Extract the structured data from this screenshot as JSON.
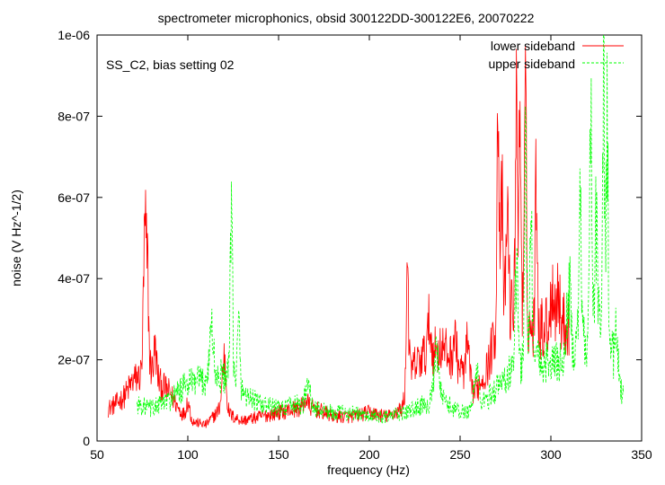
{
  "chart_data": {
    "type": "line",
    "title": "spectrometer microphonics, obsid 300122DD-300122E6, 20070222",
    "annotation": "SS_C2, bias setting 02",
    "xlabel": "frequency (Hz)",
    "ylabel": "noise (V Hz^-1/2)",
    "xlim": [
      50,
      350
    ],
    "ylim": [
      0,
      1e-06
    ],
    "x_ticks": [
      50,
      100,
      150,
      200,
      250,
      300,
      350
    ],
    "x_tick_labels": [
      "50",
      "100",
      "150",
      "200",
      "250",
      "300",
      "350"
    ],
    "y_ticks": [
      0,
      2e-07,
      4e-07,
      6e-07,
      8e-07,
      1e-06
    ],
    "y_tick_labels": [
      "0",
      "2e-07",
      "4e-07",
      "6e-07",
      "8e-07",
      "1e-06"
    ],
    "grid": false,
    "legend_position": "top-right",
    "series": [
      {
        "name": "lower sideband",
        "color": "#ff0000",
        "dash": "solid",
        "x_range": [
          56,
          310
        ],
        "base": [
          [
            56,
            8e-08
          ],
          [
            60,
            9e-08
          ],
          [
            65,
            1.1e-07
          ],
          [
            70,
            1.5e-07
          ],
          [
            74,
            1.6e-07
          ],
          [
            80,
            1.8e-07
          ],
          [
            85,
            1.4e-07
          ],
          [
            90,
            1.2e-07
          ],
          [
            95,
            8e-08
          ],
          [
            100,
            5e-08
          ],
          [
            110,
            4e-08
          ],
          [
            118,
            8e-08
          ],
          [
            125,
            6e-08
          ],
          [
            130,
            5e-08
          ],
          [
            140,
            6e-08
          ],
          [
            150,
            7e-08
          ],
          [
            160,
            8e-08
          ],
          [
            170,
            8e-08
          ],
          [
            180,
            6e-08
          ],
          [
            190,
            6e-08
          ],
          [
            200,
            7e-08
          ],
          [
            210,
            6e-08
          ],
          [
            218,
            8e-08
          ],
          [
            222,
            1.7e-07
          ],
          [
            230,
            2.1e-07
          ],
          [
            240,
            2.3e-07
          ],
          [
            250,
            1.8e-07
          ],
          [
            258,
            1.2e-07
          ],
          [
            265,
            1.8e-07
          ],
          [
            270,
            2.8e-07
          ],
          [
            280,
            3.3e-07
          ],
          [
            290,
            2.7e-07
          ],
          [
            300,
            2.9e-07
          ],
          [
            310,
            2.9e-07
          ]
        ],
        "peaks": [
          [
            76.5,
            5.4e-07,
            1.2
          ],
          [
            77.5,
            4.6e-07,
            1
          ],
          [
            82,
            2.3e-07,
            1
          ],
          [
            100,
            1e-07,
            1.5
          ],
          [
            120,
            2.1e-07,
            1.5
          ],
          [
            165,
            1e-07,
            2
          ],
          [
            221,
            4.8e-07,
            0.8
          ],
          [
            233,
            2.9e-07,
            1.2
          ],
          [
            247,
            2.6e-07,
            1.2
          ],
          [
            254,
            2.4e-07,
            1.2
          ],
          [
            271,
            8.7e-07,
            0.9
          ],
          [
            273,
            6e-07,
            0.8
          ],
          [
            276,
            5.8e-07,
            1
          ],
          [
            281,
            1e-06,
            0.7
          ],
          [
            283,
            8.6e-07,
            0.8
          ],
          [
            286,
            8.3e-07,
            0.8
          ],
          [
            292,
            6.9e-07,
            0.8
          ],
          [
            301,
            4e-07,
            1.2
          ],
          [
            304,
            3.9e-07,
            1
          ]
        ],
        "noise": 0.28
      },
      {
        "name": "upper sideband",
        "color": "#00ff00",
        "dash": "dashed",
        "x_range": [
          72,
          340
        ],
        "base": [
          [
            72,
            9e-08
          ],
          [
            80,
            8e-08
          ],
          [
            90,
            1e-07
          ],
          [
            100,
            1.4e-07
          ],
          [
            110,
            1.5e-07
          ],
          [
            120,
            1.6e-07
          ],
          [
            130,
            1.2e-07
          ],
          [
            140,
            9e-08
          ],
          [
            150,
            8e-08
          ],
          [
            160,
            9e-08
          ],
          [
            170,
            8e-08
          ],
          [
            180,
            7e-08
          ],
          [
            190,
            7e-08
          ],
          [
            200,
            6e-08
          ],
          [
            210,
            6e-08
          ],
          [
            220,
            7e-08
          ],
          [
            230,
            9e-08
          ],
          [
            240,
            1e-07
          ],
          [
            250,
            7e-08
          ],
          [
            260,
            8e-08
          ],
          [
            270,
            1.3e-07
          ],
          [
            280,
            1.8e-07
          ],
          [
            290,
            2.1e-07
          ],
          [
            300,
            1.9e-07
          ],
          [
            310,
            2e-07
          ],
          [
            320,
            2.5e-07
          ],
          [
            330,
            2.9e-07
          ],
          [
            335,
            1.9e-07
          ],
          [
            340,
            1.1e-07
          ]
        ],
        "peaks": [
          [
            124,
            5.4e-07,
            1
          ],
          [
            128,
            2.9e-07,
            1
          ],
          [
            113,
            2.9e-07,
            1.5
          ],
          [
            166,
            1.6e-07,
            1.5
          ],
          [
            237,
            2.1e-07,
            2
          ],
          [
            259,
            1.7e-07,
            2
          ],
          [
            281,
            4.5e-07,
            1
          ],
          [
            286,
            8.7e-07,
            0.8
          ],
          [
            289,
            5.6e-07,
            1
          ],
          [
            310,
            3.9e-07,
            1.5
          ],
          [
            316,
            6.9e-07,
            0.8
          ],
          [
            322,
            8.2e-07,
            0.8
          ],
          [
            325,
            5.4e-07,
            1
          ],
          [
            329,
            1e-06,
            0.7
          ],
          [
            331,
            8e-07,
            0.8
          ],
          [
            336,
            3.2e-07,
            1
          ]
        ],
        "noise": 0.28
      }
    ]
  }
}
